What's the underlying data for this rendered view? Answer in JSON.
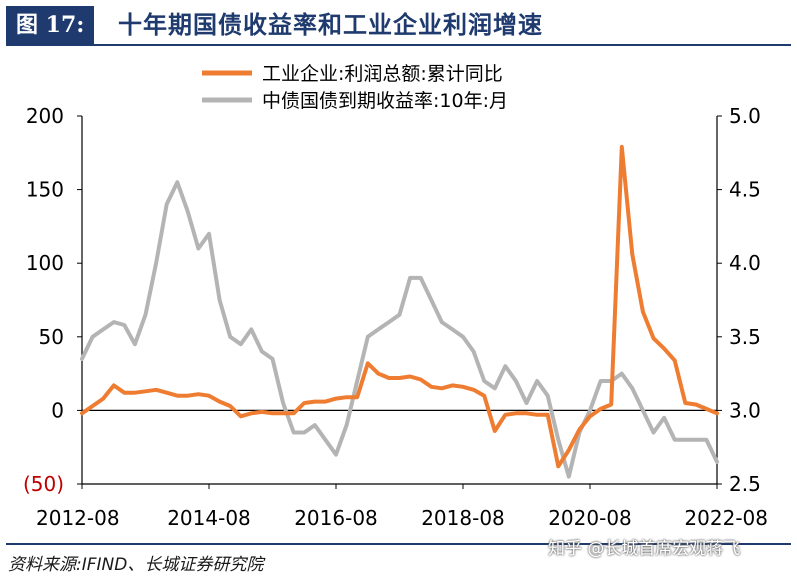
{
  "header": {
    "figure_label": "图 17:",
    "title": "十年期国债收益率和工业企业利润增速"
  },
  "colors": {
    "brand": "#1f3a6e",
    "profit": "#ee7d31",
    "yield": "#b4b4b4",
    "negative_label": "#c00000"
  },
  "chart_data": {
    "type": "line",
    "title": "十年期国债收益率和工业企业利润增速",
    "x_ticks": [
      "2012-08",
      "2014-08",
      "2016-08",
      "2018-08",
      "2020-08",
      "2022-08"
    ],
    "x_range": [
      "2012-08",
      "2022-08"
    ],
    "left_axis": {
      "ylim": [
        -50,
        200
      ],
      "ticks": [
        "(50)",
        "0",
        "50",
        "100",
        "150",
        "200"
      ]
    },
    "right_axis": {
      "ylim": [
        2.5,
        5.0
      ],
      "ticks": [
        "2.5",
        "3.0",
        "3.5",
        "4.0",
        "4.5",
        "5.0"
      ]
    },
    "legend_position": "top-center",
    "series": [
      {
        "name": "工业企业:利润总额:累计同比",
        "axis": "left",
        "color": "#ee7d31",
        "points": [
          [
            "2012-08",
            -2
          ],
          [
            "2012-10",
            3
          ],
          [
            "2012-12",
            8
          ],
          [
            "2013-02",
            17
          ],
          [
            "2013-04",
            12
          ],
          [
            "2013-06",
            12
          ],
          [
            "2013-08",
            13
          ],
          [
            "2013-10",
            14
          ],
          [
            "2013-12",
            12
          ],
          [
            "2014-02",
            10
          ],
          [
            "2014-04",
            10
          ],
          [
            "2014-06",
            11
          ],
          [
            "2014-08",
            10
          ],
          [
            "2014-10",
            6
          ],
          [
            "2014-12",
            3
          ],
          [
            "2015-02",
            -4
          ],
          [
            "2015-04",
            -2
          ],
          [
            "2015-06",
            -1
          ],
          [
            "2015-08",
            -2
          ],
          [
            "2015-10",
            -2
          ],
          [
            "2015-12",
            -2
          ],
          [
            "2016-02",
            5
          ],
          [
            "2016-04",
            6
          ],
          [
            "2016-06",
            6
          ],
          [
            "2016-08",
            8
          ],
          [
            "2016-10",
            9
          ],
          [
            "2016-12",
            9
          ],
          [
            "2017-02",
            32
          ],
          [
            "2017-04",
            25
          ],
          [
            "2017-06",
            22
          ],
          [
            "2017-08",
            22
          ],
          [
            "2017-10",
            23
          ],
          [
            "2017-12",
            21
          ],
          [
            "2018-02",
            16
          ],
          [
            "2018-04",
            15
          ],
          [
            "2018-06",
            17
          ],
          [
            "2018-08",
            16
          ],
          [
            "2018-10",
            14
          ],
          [
            "2018-12",
            10
          ],
          [
            "2019-02",
            -14
          ],
          [
            "2019-04",
            -3
          ],
          [
            "2019-06",
            -2
          ],
          [
            "2019-08",
            -2
          ],
          [
            "2019-10",
            -3
          ],
          [
            "2019-12",
            -3
          ],
          [
            "2020-02",
            -38
          ],
          [
            "2020-04",
            -27
          ],
          [
            "2020-06",
            -13
          ],
          [
            "2020-08",
            -4
          ],
          [
            "2020-10",
            1
          ],
          [
            "2020-12",
            4
          ],
          [
            "2021-02",
            179
          ],
          [
            "2021-04",
            106
          ],
          [
            "2021-06",
            67
          ],
          [
            "2021-08",
            49
          ],
          [
            "2021-10",
            42
          ],
          [
            "2021-12",
            34
          ],
          [
            "2022-02",
            5
          ],
          [
            "2022-04",
            4
          ],
          [
            "2022-06",
            1
          ],
          [
            "2022-08",
            -2
          ]
        ]
      },
      {
        "name": "中债国债到期收益率:10年:月",
        "axis": "right",
        "color": "#b4b4b4",
        "points": [
          [
            "2012-08",
            3.35
          ],
          [
            "2012-10",
            3.5
          ],
          [
            "2012-12",
            3.55
          ],
          [
            "2013-02",
            3.6
          ],
          [
            "2013-04",
            3.58
          ],
          [
            "2013-06",
            3.45
          ],
          [
            "2013-08",
            3.65
          ],
          [
            "2013-10",
            4.0
          ],
          [
            "2013-12",
            4.4
          ],
          [
            "2014-02",
            4.55
          ],
          [
            "2014-04",
            4.35
          ],
          [
            "2014-06",
            4.1
          ],
          [
            "2014-08",
            4.2
          ],
          [
            "2014-10",
            3.75
          ],
          [
            "2014-12",
            3.5
          ],
          [
            "2015-02",
            3.45
          ],
          [
            "2015-04",
            3.55
          ],
          [
            "2015-06",
            3.4
          ],
          [
            "2015-08",
            3.35
          ],
          [
            "2015-10",
            3.05
          ],
          [
            "2015-12",
            2.85
          ],
          [
            "2016-02",
            2.85
          ],
          [
            "2016-04",
            2.9
          ],
          [
            "2016-06",
            2.8
          ],
          [
            "2016-08",
            2.7
          ],
          [
            "2016-10",
            2.9
          ],
          [
            "2016-12",
            3.2
          ],
          [
            "2017-02",
            3.5
          ],
          [
            "2017-04",
            3.55
          ],
          [
            "2017-06",
            3.6
          ],
          [
            "2017-08",
            3.65
          ],
          [
            "2017-10",
            3.9
          ],
          [
            "2017-12",
            3.9
          ],
          [
            "2018-02",
            3.75
          ],
          [
            "2018-04",
            3.6
          ],
          [
            "2018-06",
            3.55
          ],
          [
            "2018-08",
            3.5
          ],
          [
            "2018-10",
            3.4
          ],
          [
            "2018-12",
            3.2
          ],
          [
            "2019-02",
            3.15
          ],
          [
            "2019-04",
            3.3
          ],
          [
            "2019-06",
            3.2
          ],
          [
            "2019-08",
            3.05
          ],
          [
            "2019-10",
            3.2
          ],
          [
            "2019-12",
            3.1
          ],
          [
            "2020-02",
            2.8
          ],
          [
            "2020-04",
            2.55
          ],
          [
            "2020-06",
            2.85
          ],
          [
            "2020-08",
            3.0
          ],
          [
            "2020-10",
            3.2
          ],
          [
            "2020-12",
            3.2
          ],
          [
            "2021-02",
            3.25
          ],
          [
            "2021-04",
            3.15
          ],
          [
            "2021-06",
            3.0
          ],
          [
            "2021-08",
            2.85
          ],
          [
            "2021-10",
            2.95
          ],
          [
            "2021-12",
            2.8
          ],
          [
            "2022-02",
            2.8
          ],
          [
            "2022-04",
            2.8
          ],
          [
            "2022-06",
            2.8
          ],
          [
            "2022-08",
            2.65
          ]
        ]
      }
    ]
  },
  "footer": {
    "source": "资料来源:IFIND、长城证券研究院",
    "watermark": "知乎 @长城首席宏观蒋飞"
  }
}
